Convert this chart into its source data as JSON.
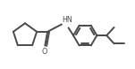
{
  "bg_color": "#ffffff",
  "line_color": "#4a4a4a",
  "line_width": 1.4,
  "figsize": [
    1.51,
    0.78
  ],
  "dpi": 100,
  "xlim": [
    0.3,
    7.2
  ],
  "ylim": [
    1.6,
    4.8
  ]
}
